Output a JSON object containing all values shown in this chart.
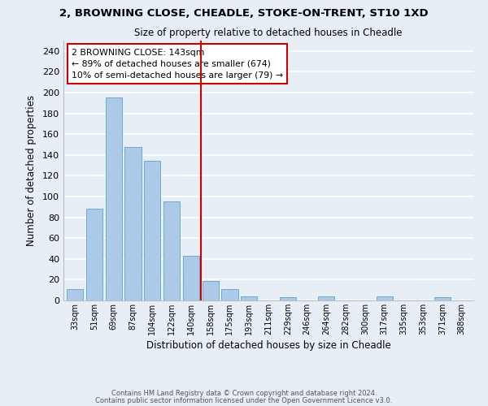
{
  "title": "2, BROWNING CLOSE, CHEADLE, STOKE-ON-TRENT, ST10 1XD",
  "subtitle": "Size of property relative to detached houses in Cheadle",
  "xlabel": "Distribution of detached houses by size in Cheadle",
  "ylabel": "Number of detached properties",
  "bar_labels": [
    "33sqm",
    "51sqm",
    "69sqm",
    "87sqm",
    "104sqm",
    "122sqm",
    "140sqm",
    "158sqm",
    "175sqm",
    "193sqm",
    "211sqm",
    "229sqm",
    "246sqm",
    "264sqm",
    "282sqm",
    "300sqm",
    "317sqm",
    "335sqm",
    "353sqm",
    "371sqm",
    "388sqm"
  ],
  "bar_values": [
    11,
    88,
    195,
    148,
    134,
    95,
    43,
    19,
    11,
    4,
    0,
    3,
    0,
    4,
    0,
    0,
    4,
    0,
    0,
    3,
    0
  ],
  "bar_color": "#adc9e8",
  "bar_edge_color": "#6aaad4",
  "vline_x": 6.5,
  "vline_color": "#cc0000",
  "annotation_text": "2 BROWNING CLOSE: 143sqm\n← 89% of detached houses are smaller (674)\n10% of semi-detached houses are larger (79) →",
  "annotation_box_color": "#ffffff",
  "annotation_box_edge": "#cc0000",
  "ylim": [
    0,
    250
  ],
  "yticks": [
    0,
    20,
    40,
    60,
    80,
    100,
    120,
    140,
    160,
    180,
    200,
    220,
    240
  ],
  "footer_line1": "Contains HM Land Registry data © Crown copyright and database right 2024.",
  "footer_line2": "Contains public sector information licensed under the Open Government Licence v3.0.",
  "bg_color": "#e8eef5",
  "plot_bg_color": "#e8eef5",
  "grid_color": "#ffffff"
}
